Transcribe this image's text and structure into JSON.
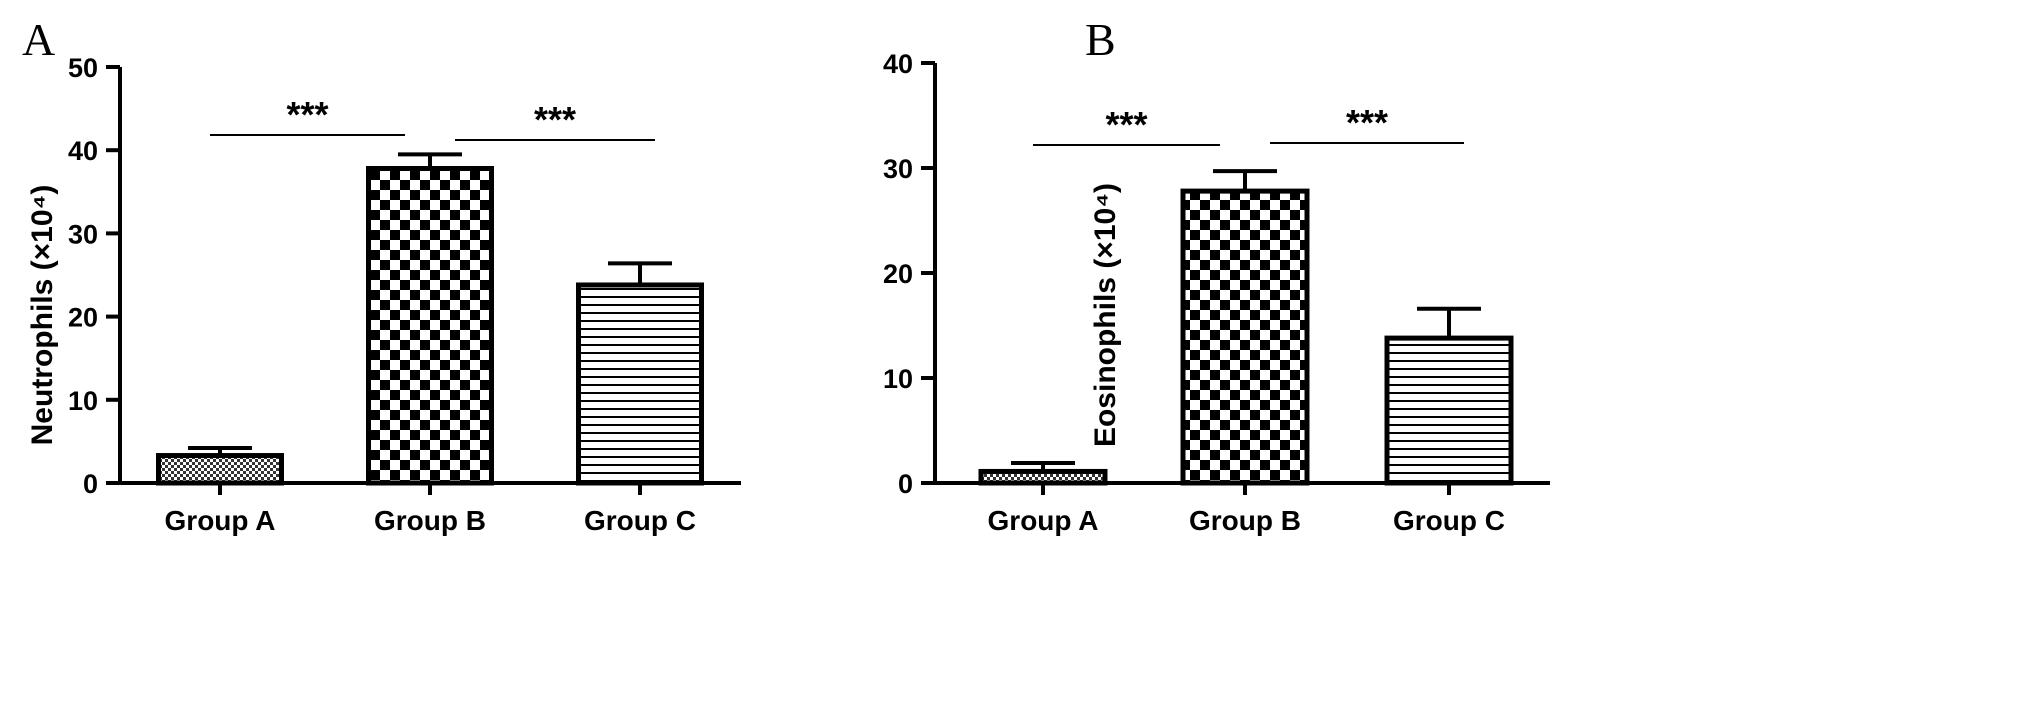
{
  "chart_data": [
    {
      "panel": "A",
      "type": "bar",
      "categories": [
        "Group A",
        "Group B",
        "Group C"
      ],
      "values": [
        3.3,
        37.8,
        23.8
      ],
      "errors": [
        0.9,
        1.7,
        2.6
      ],
      "patterns": [
        "dots",
        "checker",
        "hstripes"
      ],
      "ylabel": "Neutrophils (×10⁴)",
      "ylim": [
        0,
        50
      ],
      "yticks": [
        0,
        10,
        20,
        30,
        40,
        50
      ],
      "significance": [
        {
          "from": "Group A",
          "to": "Group B",
          "label": "***"
        },
        {
          "from": "Group B",
          "to": "Group C",
          "label": "***"
        }
      ],
      "grid": false
    },
    {
      "panel": "B",
      "type": "bar",
      "categories": [
        "Group A",
        "Group B",
        "Group C"
      ],
      "values": [
        1.1,
        27.8,
        13.8
      ],
      "errors": [
        0.8,
        1.9,
        2.8
      ],
      "patterns": [
        "dots",
        "checker",
        "hstripes"
      ],
      "ylabel": "Eosinophils (×10⁴)",
      "ylim": [
        0,
        40
      ],
      "yticks": [
        0,
        10,
        20,
        30,
        40
      ],
      "significance": [
        {
          "from": "Group A",
          "to": "Group B",
          "label": "***"
        },
        {
          "from": "Group B",
          "to": "Group C",
          "label": "***"
        }
      ],
      "grid": false
    }
  ]
}
